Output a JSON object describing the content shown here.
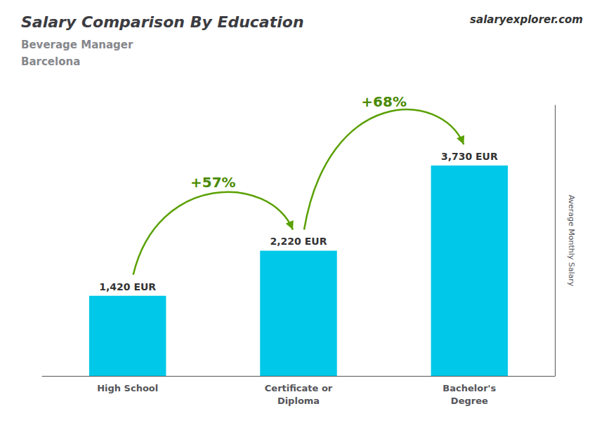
{
  "chart_data": {
    "type": "bar",
    "title": "Salary Comparison By Education",
    "subtitle": [
      "Beverage Manager",
      "Barcelona"
    ],
    "ylabel": "Average Monthly Salary",
    "categories": [
      "High School",
      "Certificate or\nDiploma",
      "Bachelor's\nDegree"
    ],
    "values": [
      1420,
      2220,
      3730
    ],
    "value_labels": [
      "1,420 EUR",
      "2,220 EUR",
      "3,730 EUR"
    ],
    "color": "#00c8e8",
    "data_labels": true,
    "ylim": [
      0,
      4800
    ],
    "grid": false,
    "legend": "none",
    "tick_labels": "x",
    "annotations": [
      {
        "text": "+57%",
        "from": "High School",
        "to": "Certificate or\nDiploma"
      },
      {
        "text": "+68%",
        "from": "Certificate or\nDiploma",
        "to": "Bachelor's\nDegree"
      },
      {
        "text": "salaryexplorer.com"
      }
    ]
  }
}
